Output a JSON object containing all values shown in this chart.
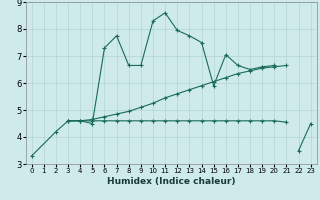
{
  "title": "",
  "xlabel": "Humidex (Indice chaleur)",
  "ylabel": "",
  "bg_color": "#ceeaea",
  "grid_color": "#b8d8d8",
  "line_color": "#1a6b5a",
  "xlim": [
    -0.5,
    23.5
  ],
  "ylim": [
    3,
    9
  ],
  "xticks": [
    0,
    1,
    2,
    3,
    4,
    5,
    6,
    7,
    8,
    9,
    10,
    11,
    12,
    13,
    14,
    15,
    16,
    17,
    18,
    19,
    20,
    21,
    22,
    23
  ],
  "yticks": [
    3,
    4,
    5,
    6,
    7,
    8,
    9
  ],
  "series1_x": [
    0,
    2,
    3,
    4,
    5,
    6,
    7,
    8,
    9,
    10,
    11,
    12,
    13,
    14,
    15,
    16,
    17,
    18,
    19,
    20,
    22,
    23
  ],
  "series1_y": [
    3.3,
    4.2,
    4.6,
    4.6,
    4.5,
    7.3,
    7.75,
    6.65,
    6.65,
    8.3,
    8.6,
    7.95,
    7.75,
    7.5,
    5.9,
    7.05,
    6.65,
    6.5,
    6.6,
    6.65,
    3.5,
    4.5
  ],
  "series1_gap_after": [
    19
  ],
  "series2_x": [
    3,
    4,
    5,
    6,
    7,
    8,
    9,
    10,
    11,
    12,
    13,
    14,
    15,
    16,
    17,
    18,
    19,
    20,
    21
  ],
  "series2_y": [
    4.6,
    4.6,
    4.65,
    4.75,
    4.85,
    4.95,
    5.1,
    5.25,
    5.45,
    5.6,
    5.75,
    5.9,
    6.05,
    6.2,
    6.35,
    6.45,
    6.55,
    6.6,
    6.65
  ],
  "series3_x": [
    3,
    4,
    5,
    6,
    7,
    8,
    9,
    10,
    11,
    12,
    13,
    14,
    15,
    16,
    17,
    18,
    19,
    20,
    21
  ],
  "series3_y": [
    4.6,
    4.6,
    4.6,
    4.6,
    4.6,
    4.6,
    4.6,
    4.6,
    4.6,
    4.6,
    4.6,
    4.6,
    4.6,
    4.6,
    4.6,
    4.6,
    4.6,
    4.6,
    4.55
  ]
}
